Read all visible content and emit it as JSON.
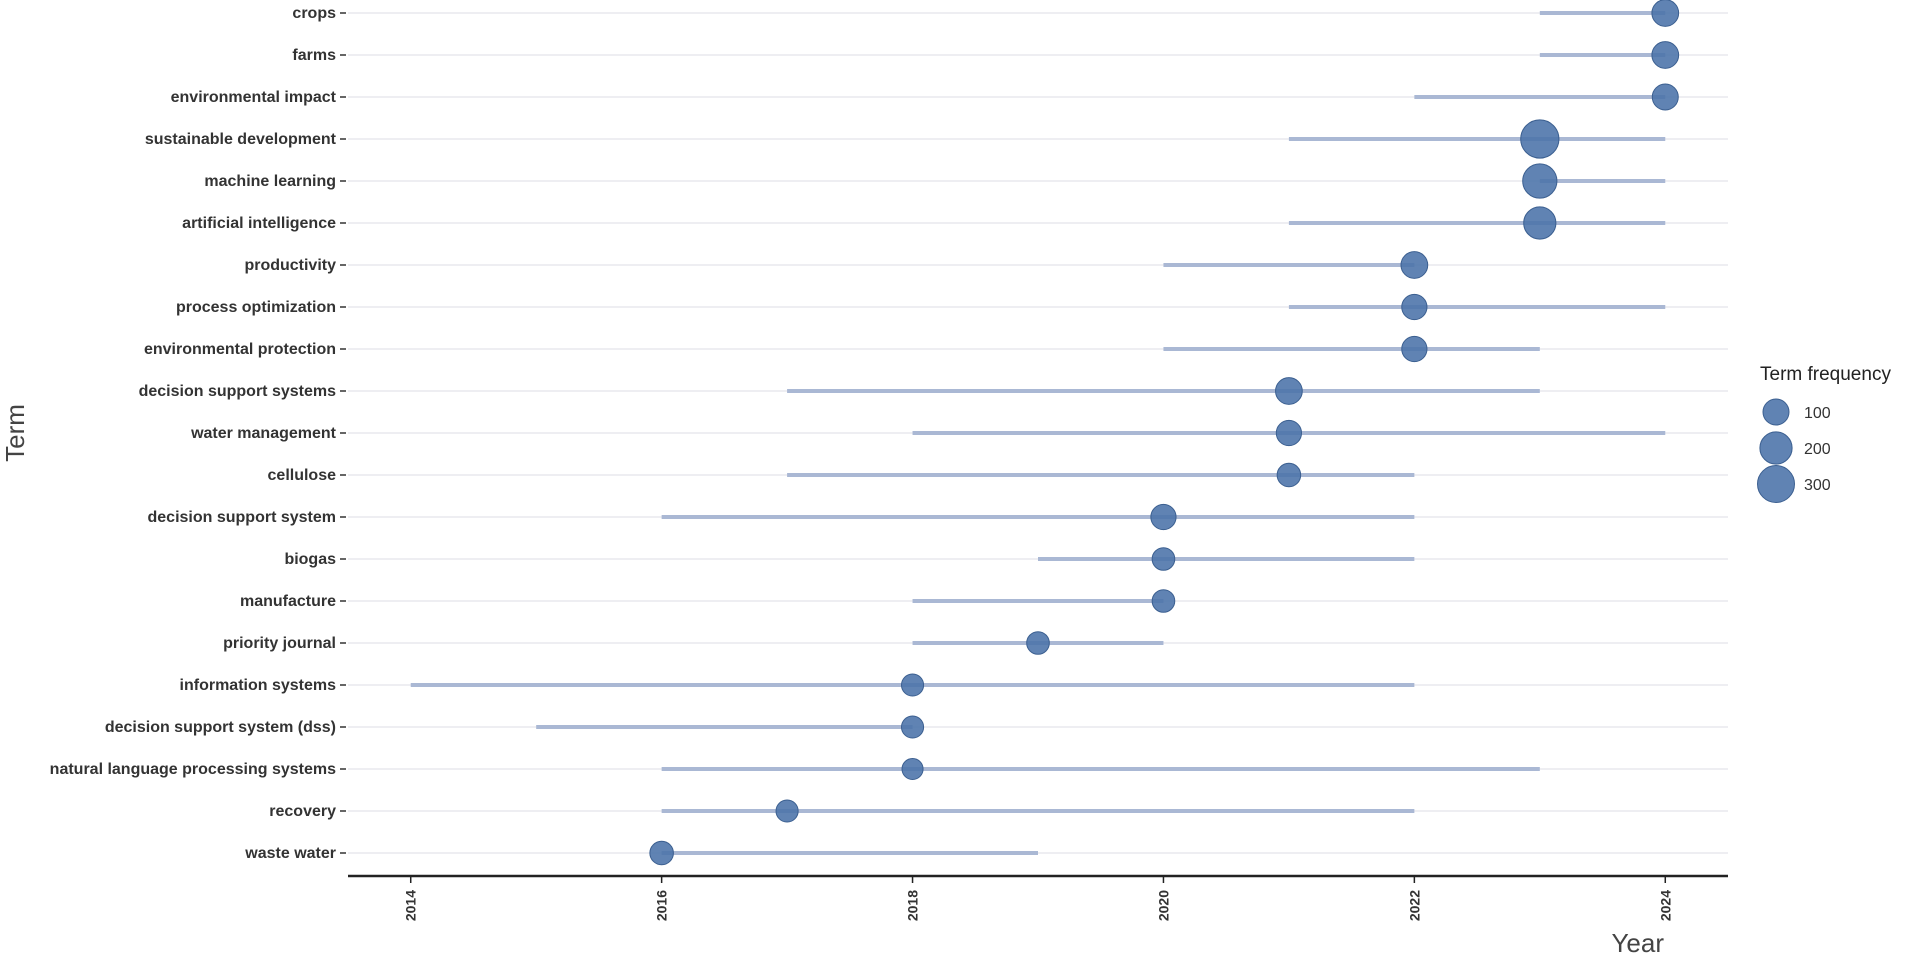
{
  "chart_data": {
    "type": "scatter",
    "xlabel": "Year",
    "ylabel": "Term",
    "xlim": [
      2013.5,
      2024.5
    ],
    "x_ticks": [
      2014,
      2016,
      2018,
      2020,
      2022,
      2024
    ],
    "grid": "horizontal",
    "legend_placement": "right",
    "legend": {
      "title": "Term frequency",
      "entries": [
        {
          "label": "100",
          "value": 100
        },
        {
          "label": "200",
          "value": 200
        },
        {
          "label": "300",
          "value": 300
        }
      ]
    },
    "colors": {
      "point": "#4a72a8",
      "range_line": "#aab8d4",
      "grid": "#e8e8ee",
      "axis": "#222222"
    },
    "terms": [
      {
        "term": "crops",
        "start": 2023,
        "median": 2024,
        "end": 2024,
        "frequency": 110
      },
      {
        "term": "farms",
        "start": 2023,
        "median": 2024,
        "end": 2024,
        "frequency": 110
      },
      {
        "term": "environmental impact",
        "start": 2022,
        "median": 2024,
        "end": 2024,
        "frequency": 100
      },
      {
        "term": "sustainable development",
        "start": 2021,
        "median": 2023,
        "end": 2024,
        "frequency": 330
      },
      {
        "term": "machine learning",
        "start": 2023,
        "median": 2023,
        "end": 2024,
        "frequency": 240
      },
      {
        "term": "artificial intelligence",
        "start": 2021,
        "median": 2023,
        "end": 2024,
        "frequency": 200
      },
      {
        "term": "productivity",
        "start": 2020,
        "median": 2022,
        "end": 2022,
        "frequency": 110
      },
      {
        "term": "process optimization",
        "start": 2021,
        "median": 2022,
        "end": 2024,
        "frequency": 90
      },
      {
        "term": "environmental protection",
        "start": 2020,
        "median": 2022,
        "end": 2023,
        "frequency": 90
      },
      {
        "term": "decision support systems",
        "start": 2017,
        "median": 2021,
        "end": 2023,
        "frequency": 110
      },
      {
        "term": "water management",
        "start": 2018,
        "median": 2021,
        "end": 2024,
        "frequency": 90
      },
      {
        "term": "cellulose",
        "start": 2017,
        "median": 2021,
        "end": 2022,
        "frequency": 70
      },
      {
        "term": "decision support system",
        "start": 2016,
        "median": 2020,
        "end": 2022,
        "frequency": 90
      },
      {
        "term": "biogas",
        "start": 2019,
        "median": 2020,
        "end": 2022,
        "frequency": 60
      },
      {
        "term": "manufacture",
        "start": 2018,
        "median": 2020,
        "end": 2020,
        "frequency": 60
      },
      {
        "term": "priority journal",
        "start": 2018,
        "median": 2019,
        "end": 2020,
        "frequency": 60
      },
      {
        "term": "information systems",
        "start": 2014,
        "median": 2018,
        "end": 2022,
        "frequency": 55
      },
      {
        "term": "decision support system (dss)",
        "start": 2015,
        "median": 2018,
        "end": 2018,
        "frequency": 55
      },
      {
        "term": "natural language processing systems",
        "start": 2016,
        "median": 2018,
        "end": 2023,
        "frequency": 45
      },
      {
        "term": "recovery",
        "start": 2016,
        "median": 2017,
        "end": 2022,
        "frequency": 55
      },
      {
        "term": "waste water",
        "start": 2016,
        "median": 2016,
        "end": 2019,
        "frequency": 70
      }
    ]
  }
}
